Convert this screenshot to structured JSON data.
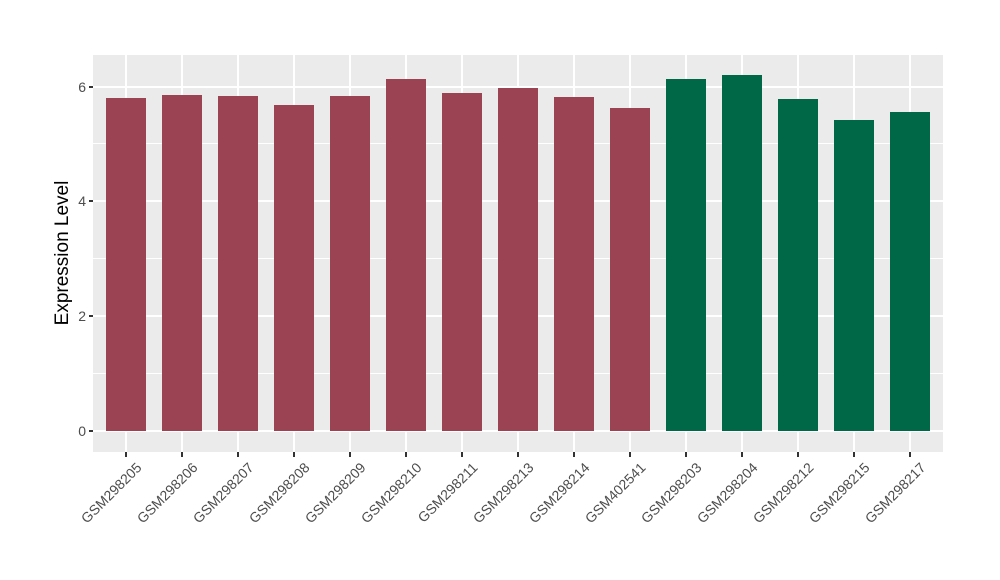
{
  "chart_data": {
    "type": "bar",
    "title": "",
    "xlabel": "",
    "ylabel": "Expression Level",
    "categories": [
      "GSM298205",
      "GSM298206",
      "GSM298207",
      "GSM298208",
      "GSM298209",
      "GSM298210",
      "GSM298211",
      "GSM298213",
      "GSM298214",
      "GSM402541",
      "GSM298203",
      "GSM298204",
      "GSM298212",
      "GSM298215",
      "GSM298217"
    ],
    "values": [
      5.8,
      5.86,
      5.84,
      5.67,
      5.84,
      6.13,
      5.88,
      5.97,
      5.81,
      5.62,
      6.14,
      6.21,
      5.78,
      5.41,
      5.55
    ],
    "bar_colors": [
      "#9B4352",
      "#9B4352",
      "#9B4352",
      "#9B4352",
      "#9B4352",
      "#9B4352",
      "#9B4352",
      "#9B4352",
      "#9B4352",
      "#9B4352",
      "#006847",
      "#006847",
      "#006847",
      "#006847",
      "#006847"
    ],
    "yticks": [
      0,
      2,
      4,
      6
    ],
    "minor_yticks": [
      1,
      3,
      5
    ],
    "ylim": [
      -0.37,
      6.55
    ],
    "x_tick_label_angle": 45,
    "grid": true,
    "legend_position": "none",
    "panel_background": "#EBEBEB",
    "gridline_color": "#FFFFFF"
  }
}
